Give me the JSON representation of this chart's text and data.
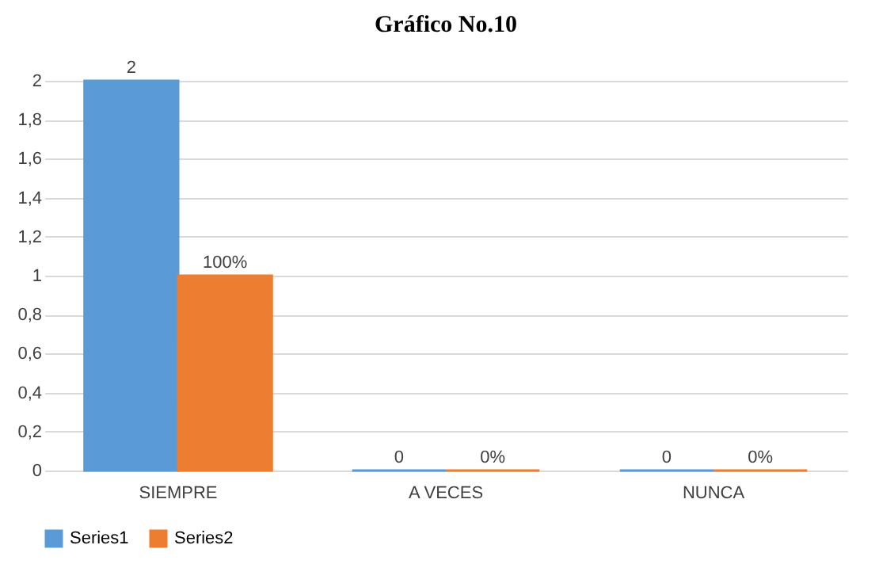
{
  "chart_data": {
    "type": "bar",
    "title": "Gráfico No.10",
    "categories": [
      "SIEMPRE",
      "A VECES",
      "NUNCA"
    ],
    "series": [
      {
        "name": "Series1",
        "color": "#5b9bd5",
        "values": [
          2,
          0,
          0
        ],
        "value_labels": [
          "2",
          "0",
          "0"
        ]
      },
      {
        "name": "Series2",
        "color": "#ed7d31",
        "values": [
          1,
          0,
          0
        ],
        "value_labels": [
          "100%",
          "0%",
          "0%"
        ]
      }
    ],
    "ylim": [
      0,
      2
    ],
    "yticks": [
      0,
      {
        "value": 0.2,
        "label": "0,2"
      },
      {
        "value": 0.4,
        "label": "0,4"
      },
      {
        "value": 0.6,
        "label": "0,6"
      },
      {
        "value": 0.8,
        "label": "0,8"
      },
      1,
      {
        "value": 1.2,
        "label": "1,2"
      },
      {
        "value": 1.4,
        "label": "1,4"
      },
      {
        "value": 1.6,
        "label": "1,6"
      },
      {
        "value": 1.8,
        "label": "1,8"
      },
      2
    ],
    "grid": "y",
    "legend": "bottom"
  }
}
